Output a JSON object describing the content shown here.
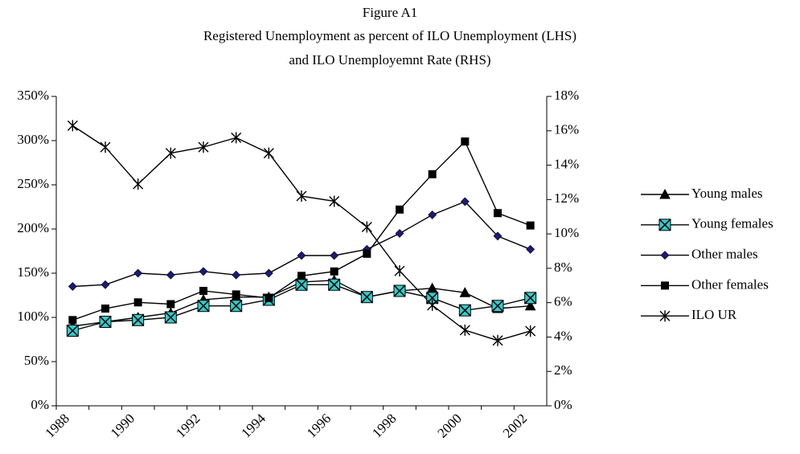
{
  "chart_data": {
    "type": "line",
    "title": "Figure A1",
    "subtitle": [
      "Registered Unemployment as percent of ILO Unemployment (LHS)",
      "and ILO Unemployemnt Rate (RHS)"
    ],
    "categories": [
      1988,
      null,
      1990,
      null,
      1992,
      null,
      1994,
      null,
      1996,
      null,
      1998,
      null,
      2000,
      null,
      2002
    ],
    "ylim": [
      0,
      350
    ],
    "yticks": [
      {
        "value": 0,
        "label": "0%"
      },
      {
        "value": 50,
        "label": "50%"
      },
      {
        "value": 100,
        "label": "100%"
      },
      {
        "value": 150,
        "label": "150%"
      },
      {
        "value": 200,
        "label": "200%"
      },
      {
        "value": 250,
        "label": "250%"
      },
      {
        "value": 300,
        "label": "300%"
      },
      {
        "value": 350,
        "label": "350%"
      }
    ],
    "y2lim": [
      0,
      18
    ],
    "y2ticks": [
      {
        "value": 0,
        "label": "0%"
      },
      {
        "value": 2,
        "label": "2%"
      },
      {
        "value": 4,
        "label": "4%"
      },
      {
        "value": 6,
        "label": "6%"
      },
      {
        "value": 8,
        "label": "8%"
      },
      {
        "value": 10,
        "label": "10%"
      },
      {
        "value": 12,
        "label": "12%"
      },
      {
        "value": 14,
        "label": "14%"
      },
      {
        "value": 16,
        "label": "16%"
      },
      {
        "value": 18,
        "label": "18%"
      }
    ],
    "grid": false,
    "legend": "right",
    "series": [
      {
        "name": "Young  males",
        "color": "#000000",
        "marker": "triangle",
        "marker_color": "#000000",
        "values": [
          90,
          95,
          100,
          105,
          120,
          123,
          123,
          140,
          142,
          123,
          130,
          133,
          128,
          110,
          113
        ]
      },
      {
        "name": "Young females",
        "color": "#000000",
        "marker": "xsquare",
        "marker_color": "#33cccc",
        "values": [
          85,
          95,
          97,
          100,
          113,
          113,
          120,
          137,
          137,
          123,
          130,
          122,
          108,
          113,
          122
        ]
      },
      {
        "name": "Other males",
        "color": "#000000",
        "marker": "diamond",
        "marker_color": "#1a1a7a",
        "values": [
          135,
          137,
          150,
          148,
          152,
          148,
          150,
          170,
          170,
          177,
          195,
          216,
          231,
          192,
          177
        ]
      },
      {
        "name": "Other females",
        "color": "#000000",
        "marker": "square",
        "marker_color": "#000000",
        "values": [
          97,
          110,
          117,
          115,
          130,
          126,
          122,
          147,
          152,
          172,
          222,
          262,
          299,
          218,
          204
        ]
      },
      {
        "name": "ILO UR",
        "color": "#000000",
        "marker": "star",
        "marker_color": "#000000",
        "axis": "y2",
        "values": [
          16.3,
          15.05,
          12.9,
          14.7,
          15.05,
          15.6,
          14.7,
          12.2,
          11.9,
          10.4,
          7.85,
          5.85,
          4.4,
          3.8,
          4.35
        ]
      }
    ]
  }
}
